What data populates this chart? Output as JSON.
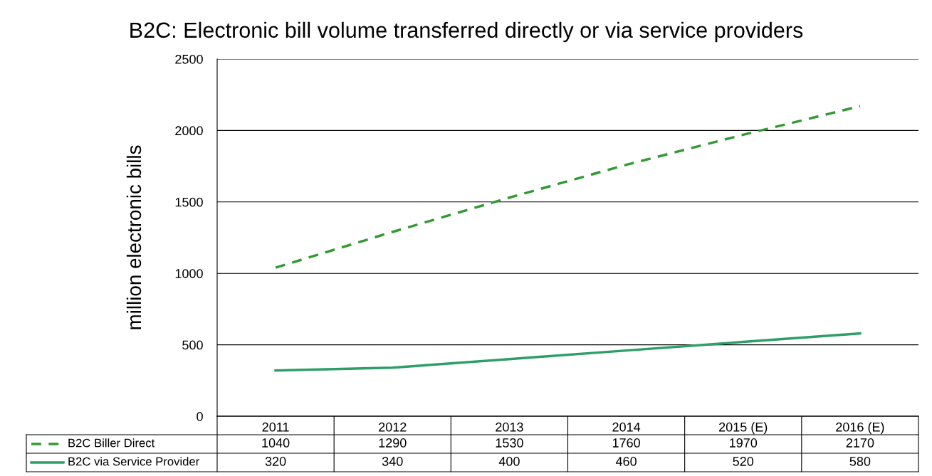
{
  "chart_data": {
    "type": "line",
    "title": "B2C: Electronic bill volume transferred directly or via service providers",
    "ylabel": "million electronic bills",
    "categories": [
      "2011",
      "2012",
      "2013",
      "2014",
      "2015 (E)",
      "2016 (E)"
    ],
    "series": [
      {
        "name": "B2C Biller Direct",
        "color": "#339933",
        "line_style": "dashed",
        "values": [
          1040,
          1290,
          1530,
          1760,
          1970,
          2170
        ]
      },
      {
        "name": "B2C via Service Provider",
        "color": "#2e9e68",
        "line_style": "solid",
        "values": [
          320,
          340,
          400,
          460,
          520,
          580
        ]
      }
    ],
    "ylim": [
      0,
      2500
    ],
    "yticks": [
      0,
      500,
      1000,
      1500,
      2000,
      2500
    ],
    "grid": "y",
    "data_labels": true,
    "legend": "bottom left",
    "marker": "none"
  }
}
